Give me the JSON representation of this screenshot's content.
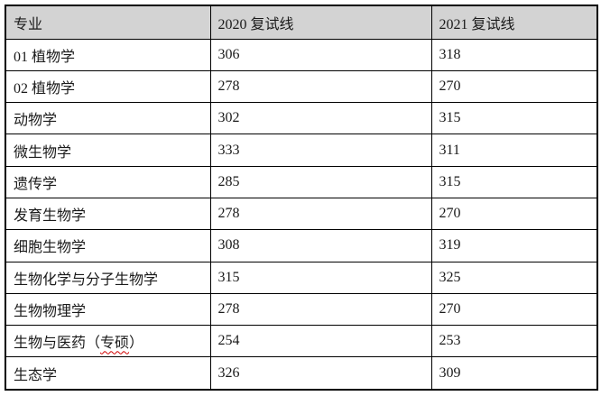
{
  "table": {
    "columns": [
      "专业",
      "2020 复试线",
      "2021 复试线"
    ],
    "rows": [
      {
        "major": "01 植物学",
        "score_2020": "306",
        "score_2021": "318"
      },
      {
        "major": "02 植物学",
        "score_2020": "278",
        "score_2021": "270"
      },
      {
        "major": "动物学",
        "score_2020": "302",
        "score_2021": "315"
      },
      {
        "major": "微生物学",
        "score_2020": "333",
        "score_2021": "311"
      },
      {
        "major": "遗传学",
        "score_2020": "285",
        "score_2021": "315"
      },
      {
        "major": "发育生物学",
        "score_2020": "278",
        "score_2021": "270"
      },
      {
        "major": "细胞生物学",
        "score_2020": "308",
        "score_2021": "319"
      },
      {
        "major": "生物化学与分子生物学",
        "score_2020": "315",
        "score_2021": "325"
      },
      {
        "major": "生物物理学",
        "score_2020": "278",
        "score_2021": "270"
      },
      {
        "major": "生物与医药（专硕）",
        "spellcheck_underline": "专硕",
        "score_2020": "254",
        "score_2021": "253"
      },
      {
        "major": "生态学",
        "score_2020": "326",
        "score_2021": "309"
      }
    ]
  },
  "colors": {
    "header_bg": "#d3d3d3",
    "border_color": "#000000",
    "squiggle_color": "#d00000",
    "text_color": "#1a1a1a"
  }
}
